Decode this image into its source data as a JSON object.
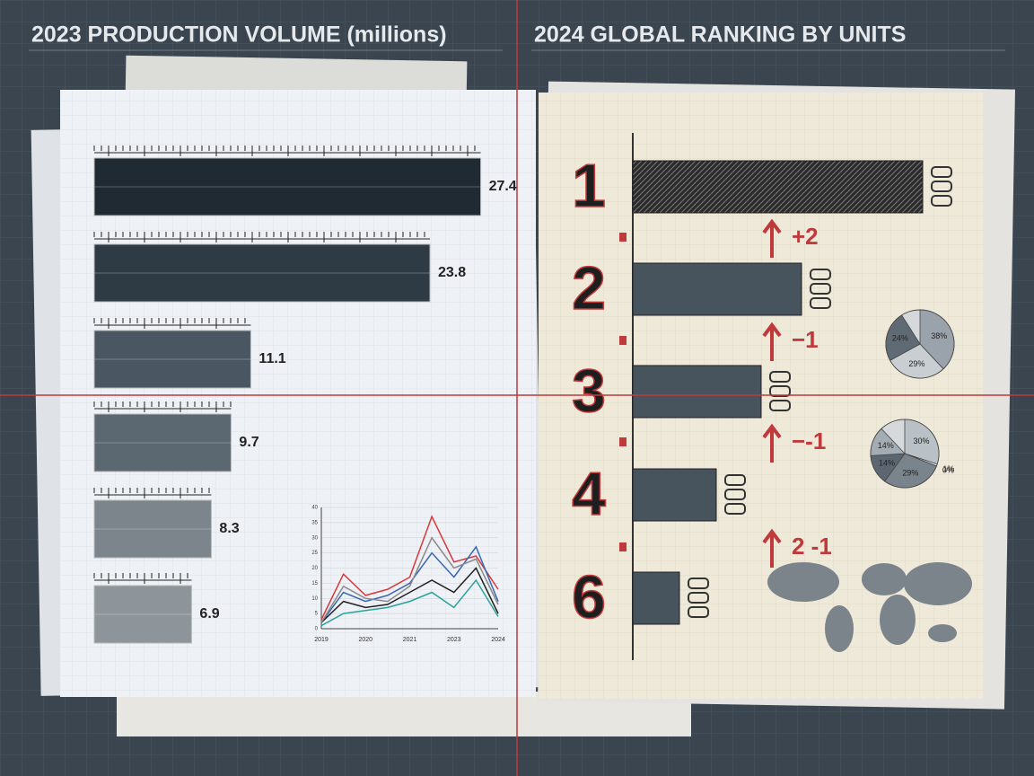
{
  "chart_data": [
    {
      "type": "hbar",
      "title": "2023 PRODUCTION VOLUME (millions)",
      "categories": [
        null,
        null,
        null,
        null,
        null,
        null
      ],
      "values": [
        27.4,
        23.8,
        11.1,
        9.7,
        8.3,
        6.9
      ],
      "xlim": [
        0,
        28
      ],
      "colors": [
        "#1f2a33",
        "#2e3b45",
        "#4a5763",
        "#5b6771",
        "#7c858c",
        "#8e959a"
      ]
    },
    {
      "type": "rankbar",
      "title": "2024 GLOBAL RANKING BY UNITS",
      "categories": [
        "1",
        "2",
        "3",
        "4",
        "6"
      ],
      "values": [
        323,
        188,
        143,
        93,
        52
      ],
      "xlim": [
        0,
        350
      ],
      "annotations": [
        "+2",
        "−1",
        "−-1",
        "2 -1"
      ],
      "color": "#47535d"
    },
    {
      "type": "line",
      "x": [
        "2019",
        null,
        "2020",
        null,
        "2021",
        null,
        "2023",
        null,
        "2024"
      ],
      "ylim": [
        0,
        40
      ],
      "yticks": [
        0,
        5,
        10,
        15,
        20,
        25,
        30,
        35,
        40
      ],
      "series": [
        {
          "color": "#d8383a",
          "values": [
            3,
            18,
            11,
            13,
            17,
            37,
            22,
            24,
            13
          ]
        },
        {
          "color": "#3a66b0",
          "values": [
            2,
            12,
            9,
            11,
            15,
            25,
            17,
            27,
            9
          ]
        },
        {
          "color": "#222222",
          "values": [
            2,
            9,
            7,
            8,
            12,
            16,
            12,
            20,
            5
          ]
        },
        {
          "color": "#2aa39a",
          "values": [
            1,
            5,
            6,
            7,
            9,
            12,
            7,
            16,
            4
          ]
        },
        {
          "color": "#8a8a8a",
          "values": [
            2,
            14,
            10,
            9,
            14,
            30,
            20,
            23,
            8
          ]
        }
      ]
    },
    {
      "type": "pie",
      "value_labels": [
        "38%",
        "29%",
        "24%"
      ],
      "values": [
        38,
        29,
        24
      ],
      "colors": [
        "#9aa3ab",
        "#c9ced2",
        "#5f6a74"
      ]
    },
    {
      "type": "pie",
      "value_labels": [
        "30%",
        "1%",
        "0%",
        "29%",
        "14%",
        "14%"
      ],
      "values": [
        30,
        1,
        0,
        29,
        14,
        14
      ],
      "colors": [
        "#b9c0c6",
        "#e0e3e6",
        "#3f4a54",
        "#7a848d",
        "#5d6771",
        "#a5adb4"
      ]
    }
  ]
}
